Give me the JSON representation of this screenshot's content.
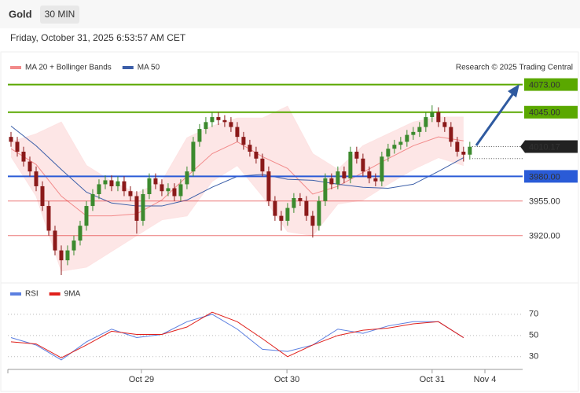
{
  "header": {
    "symbol": "Gold",
    "interval": "30 MIN",
    "timestamp": "Friday, October 31, 2025 6:53:57 AM CET"
  },
  "chart_data": [
    {
      "type": "candlestick",
      "source": "Research © 2025 Trading Central",
      "legend": "top-left",
      "up_color": "#3c8a2e",
      "down_color": "#8b1a1a",
      "xlim": [
        -0.5,
        81.4
      ],
      "ylim": [
        3876,
        4087
      ],
      "open": [
        4020,
        4015,
        4005,
        3995,
        3985,
        3970,
        3950,
        3925,
        3905,
        3895,
        3905,
        3915,
        3930,
        3950,
        3962,
        3972,
        3976,
        3970,
        3975,
        3965,
        3960,
        3935,
        3962,
        3978,
        3972,
        3965,
        3968,
        3960,
        3972,
        3985,
        4015,
        4028,
        4035,
        4040,
        4037,
        4035,
        4030,
        4020,
        4012,
        4005,
        3998,
        3985,
        3955,
        3940,
        3935,
        3948,
        3958,
        3955,
        3940,
        3930,
        3955,
        3978,
        3972,
        3985,
        3978,
        4005,
        3998,
        3985,
        3978,
        3975,
        4000,
        4008,
        4012,
        4015,
        4022,
        4025,
        4030,
        4040,
        4045,
        4035,
        4030,
        4015,
        4005,
        4002
      ],
      "high": [
        4025,
        4020,
        4010,
        4000,
        3990,
        3975,
        3955,
        3930,
        3910,
        3910,
        3920,
        3935,
        3955,
        3967,
        3977,
        3981,
        3981,
        3980,
        3980,
        3970,
        3965,
        3967,
        3983,
        3983,
        3977,
        3973,
        3973,
        3977,
        3990,
        4020,
        4033,
        4040,
        4045,
        4045,
        4042,
        4040,
        4035,
        4025,
        4017,
        4010,
        4003,
        3990,
        3960,
        3945,
        3953,
        3963,
        3963,
        3960,
        3945,
        3960,
        3983,
        3983,
        3990,
        3990,
        4010,
        4010,
        4003,
        3990,
        3983,
        4005,
        4013,
        4017,
        4020,
        4027,
        4030,
        4035,
        4045,
        4052,
        4050,
        4040,
        4035,
        4020,
        4010,
        4015
      ],
      "low": [
        4010,
        4000,
        3990,
        3980,
        3965,
        3945,
        3920,
        3900,
        3880,
        3890,
        3900,
        3910,
        3925,
        3945,
        3957,
        3967,
        3965,
        3965,
        3960,
        3955,
        3922,
        3930,
        3957,
        3967,
        3960,
        3960,
        3955,
        3955,
        3967,
        3980,
        4010,
        4023,
        4030,
        4032,
        4030,
        4025,
        4015,
        4007,
        4000,
        3993,
        3980,
        3950,
        3935,
        3925,
        3930,
        3943,
        3950,
        3935,
        3918,
        3925,
        3950,
        3967,
        3967,
        3973,
        3973,
        3993,
        3980,
        3973,
        3970,
        3970,
        3995,
        4003,
        4007,
        4010,
        4017,
        4020,
        4025,
        4035,
        4030,
        4025,
        4010,
        4000,
        3995,
        3997
      ],
      "close": [
        4015,
        4005,
        3995,
        3985,
        3970,
        3950,
        3925,
        3905,
        3895,
        3905,
        3915,
        3930,
        3950,
        3962,
        3972,
        3976,
        3970,
        3975,
        3965,
        3960,
        3935,
        3962,
        3978,
        3972,
        3965,
        3968,
        3960,
        3972,
        3985,
        4015,
        4028,
        4035,
        4040,
        4037,
        4035,
        4030,
        4020,
        4012,
        4005,
        3998,
        3985,
        3955,
        3940,
        3935,
        3948,
        3958,
        3955,
        3940,
        3930,
        3955,
        3978,
        3972,
        3985,
        3978,
        4005,
        3998,
        3985,
        3978,
        3975,
        4000,
        4008,
        4012,
        4015,
        4022,
        4025,
        4030,
        4040,
        4045,
        4035,
        4030,
        4015,
        4005,
        4002,
        4010
      ],
      "series": [
        {
          "name": "MA 20 + Bollinger Bands",
          "color": "#f28a8a",
          "band_color": "#fde3e3",
          "x": [
            0,
            4,
            8,
            12,
            16,
            20,
            24,
            28,
            32,
            36,
            40,
            44,
            48,
            52,
            56,
            60,
            64,
            68,
            72
          ],
          "values": [
            4008,
            3992,
            3960,
            3940,
            3940,
            3942,
            3956,
            3980,
            4003,
            4015,
            4000,
            3988,
            3962,
            3970,
            3984,
            3998,
            4011,
            4020,
            4016
          ],
          "upper": [
            4015,
            4023,
            4035,
            3991,
            3975,
            3963,
            3975,
            4019,
            4031,
            4039,
            4039,
            4051,
            4003,
            3987,
            4011,
            4023,
            4035,
            4040,
            4040
          ],
          "lower": [
            4000,
            3960,
            3884,
            3888,
            3904,
            3920,
            3936,
            3940,
            3975,
            3991,
            3960,
            3924,
            3920,
            3952,
            3956,
            3972,
            3987,
            3999,
            3991
          ]
        },
        {
          "name": "MA 50",
          "color": "#3b5ea8",
          "x": [
            0,
            4,
            8,
            12,
            16,
            20,
            24,
            28,
            32,
            36,
            40,
            44,
            48,
            52,
            56,
            60,
            64,
            68,
            72
          ],
          "values": [
            4031,
            4011,
            3987,
            3964,
            3953,
            3950,
            3950,
            3956,
            3969,
            3980,
            3982,
            3977,
            3976,
            3972,
            3969,
            3968,
            3972,
            3985,
            3999
          ]
        }
      ],
      "levels": [
        {
          "value": 4073,
          "label": "4073.00",
          "color": "#5aa800",
          "boxed": true
        },
        {
          "value": 4045,
          "label": "4045.00",
          "color": "#5aa800",
          "boxed": true
        },
        {
          "value": 3980,
          "label": "3980.00",
          "color": "#2a5bd7",
          "boxed": true
        },
        {
          "value": 3955,
          "label": "3955.00",
          "color": "#e02020",
          "boxed": false
        },
        {
          "value": 3920,
          "label": "3920.00",
          "color": "#e02020",
          "boxed": false
        }
      ],
      "last_price": {
        "value": 4010.17,
        "label": "4010.17",
        "color": "#222222"
      }
    },
    {
      "type": "line",
      "legend": "top-left",
      "grid": true,
      "xlim": [
        -0.5,
        81.4
      ],
      "ylim": [
        18,
        81
      ],
      "yticks": [
        70,
        50,
        30
      ],
      "xticks": [
        {
          "value": 20.75,
          "label": "Oct 29"
        },
        {
          "value": 43.9,
          "label": "Oct 30"
        },
        {
          "value": 67,
          "label": "Oct 31"
        },
        {
          "value": 75.4,
          "label": "Nov 4"
        }
      ],
      "series": [
        {
          "name": "RSI",
          "color": "#5b7fe0",
          "x": [
            0,
            4,
            8,
            12,
            16,
            20,
            24,
            28,
            32,
            36,
            40,
            44,
            48,
            52,
            56,
            60,
            64,
            68,
            72
          ],
          "values": [
            48,
            41,
            27,
            44,
            56,
            48,
            51,
            63,
            70,
            56,
            37,
            35,
            41,
            56,
            52,
            59,
            63,
            63,
            48
          ]
        },
        {
          "name": "9MA",
          "color": "#e0201b",
          "x": [
            0,
            4,
            8,
            12,
            16,
            20,
            24,
            28,
            32,
            36,
            40,
            44,
            48,
            52,
            56,
            60,
            64,
            68,
            72
          ],
          "values": [
            44,
            42,
            29,
            41,
            54,
            51,
            51,
            58,
            72,
            63,
            47,
            30,
            41,
            50,
            55,
            57,
            61,
            63,
            48
          ]
        }
      ]
    }
  ]
}
